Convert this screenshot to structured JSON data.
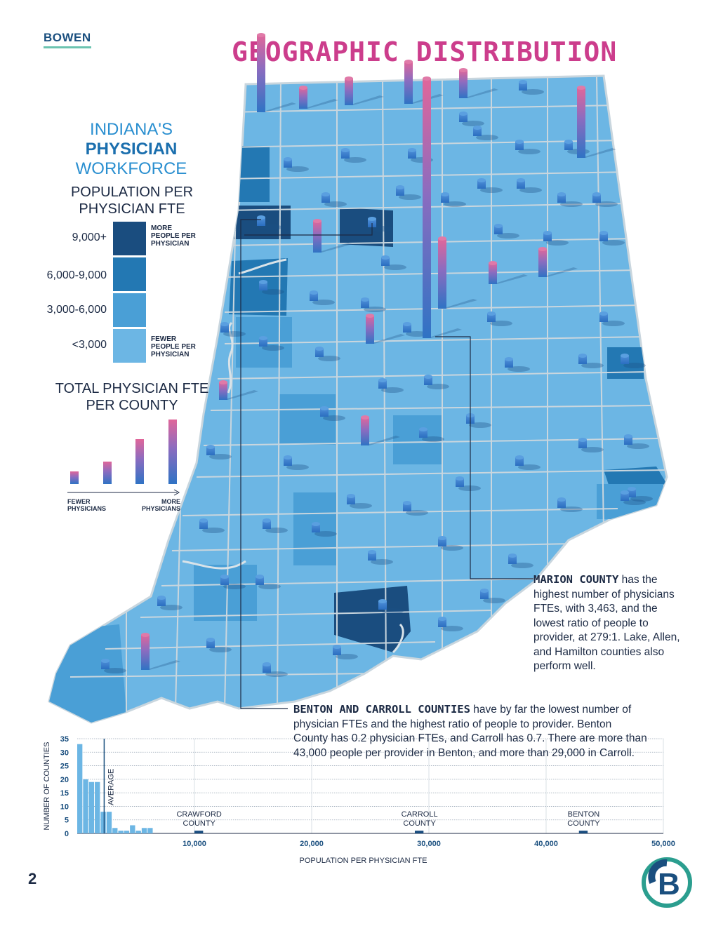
{
  "brand": "BOWEN",
  "title": "GEOGRAPHIC DISTRIBUTION",
  "page_number": "2",
  "legend": {
    "heading_line1": "INDIANA'S",
    "heading_line2": "PHYSICIAN",
    "heading_line3": "WORKFORCE",
    "pop_title_line1": "POPULATION PER",
    "pop_title_line2": "PHYSICIAN FTE",
    "classes": [
      {
        "label": "9,000+",
        "color": "#1a4d7f"
      },
      {
        "label": "6,000-9,000",
        "color": "#2378b3"
      },
      {
        "label": "3,000-6,000",
        "color": "#4a9fd6"
      },
      {
        "label": "<3,000",
        "color": "#6cb6e4"
      }
    ],
    "more_note": [
      "MORE",
      "PEOPLE PER",
      "PHYSICIAN"
    ],
    "fewer_note": [
      "FEWER",
      "PEOPLE PER",
      "PHYSICIAN"
    ],
    "fte_title_line1": "TOTAL PHYSICIAN FTE",
    "fte_title_line2": "PER COUNTY",
    "fewer_physicians": [
      "FEWER",
      "PHYSICIANS"
    ],
    "more_physicians": [
      "MORE",
      "PHYSICIANS"
    ]
  },
  "annotations": {
    "marion_bold": "MARION COUNTY",
    "marion_lines": [
      " has the",
      "highest number of physicians",
      "FTEs, with 3,463, and the",
      "lowest ratio of people to",
      "provider, at 279:1. Lake, Allen,",
      "and Hamilton counties also",
      "perform well."
    ],
    "benton_bold": "BENTON AND CARROLL COUNTIES",
    "benton_lines": [
      " have by far the lowest number of",
      "physician FTEs and the highest ratio of people to provider. Benton",
      "County has 0.2 physician FTEs, and Carroll has 0.7. There are more than",
      "43,000 people per provider in Benton, and more than 29,000 in Carroll."
    ]
  },
  "colors": {
    "title": "#cc3d8c",
    "class_9000_plus": "#1a4d7f",
    "class_6000_9000": "#2378b3",
    "class_3000_6000": "#4a9fd6",
    "class_under_3000": "#6cb6e4",
    "state_border": "#c9d6de"
  },
  "chart_data": {
    "type": "bar",
    "title": "",
    "xlabel": "POPULATION PER PHYSICIAN FTE",
    "ylabel": "NUMBER OF COUNTIES",
    "xlim": [
      0,
      50000
    ],
    "ylim": [
      0,
      35
    ],
    "x_ticks": [
      "10,000",
      "20,000",
      "30,000",
      "40,000",
      "50,000"
    ],
    "y_ticks": [
      "0",
      "5",
      "10",
      "15",
      "20",
      "25",
      "30",
      "35"
    ],
    "grid": true,
    "bins": [
      {
        "x0": 0,
        "x1": 500,
        "count": 33
      },
      {
        "x0": 500,
        "x1": 1000,
        "count": 20
      },
      {
        "x0": 1000,
        "x1": 1500,
        "count": 19
      },
      {
        "x0": 1500,
        "x1": 2000,
        "count": 19
      },
      {
        "x0": 2000,
        "x1": 2500,
        "count": 8
      },
      {
        "x0": 2500,
        "x1": 3000,
        "count": 8
      },
      {
        "x0": 3000,
        "x1": 3500,
        "count": 2
      },
      {
        "x0": 3500,
        "x1": 4000,
        "count": 1
      },
      {
        "x0": 4000,
        "x1": 4500,
        "count": 1
      },
      {
        "x0": 4500,
        "x1": 5000,
        "count": 3
      },
      {
        "x0": 5000,
        "x1": 5500,
        "count": 1
      },
      {
        "x0": 5500,
        "x1": 6000,
        "count": 2
      },
      {
        "x0": 6000,
        "x1": 6500,
        "count": 2
      },
      {
        "x0": 10000,
        "x1": 10800,
        "count": 1
      },
      {
        "x0": 28800,
        "x1": 29600,
        "count": 1
      },
      {
        "x0": 42800,
        "x1": 43600,
        "count": 1
      }
    ],
    "average": 2300,
    "average_label": "AVERAGE",
    "labels": [
      {
        "text": [
          "CRAWFORD",
          "COUNTY"
        ],
        "x": 10400
      },
      {
        "text": [
          "CARROLL",
          "COUNTY"
        ],
        "x": 29200
      },
      {
        "text": [
          "BENTON",
          "COUNTY"
        ],
        "x": 43200
      }
    ]
  }
}
